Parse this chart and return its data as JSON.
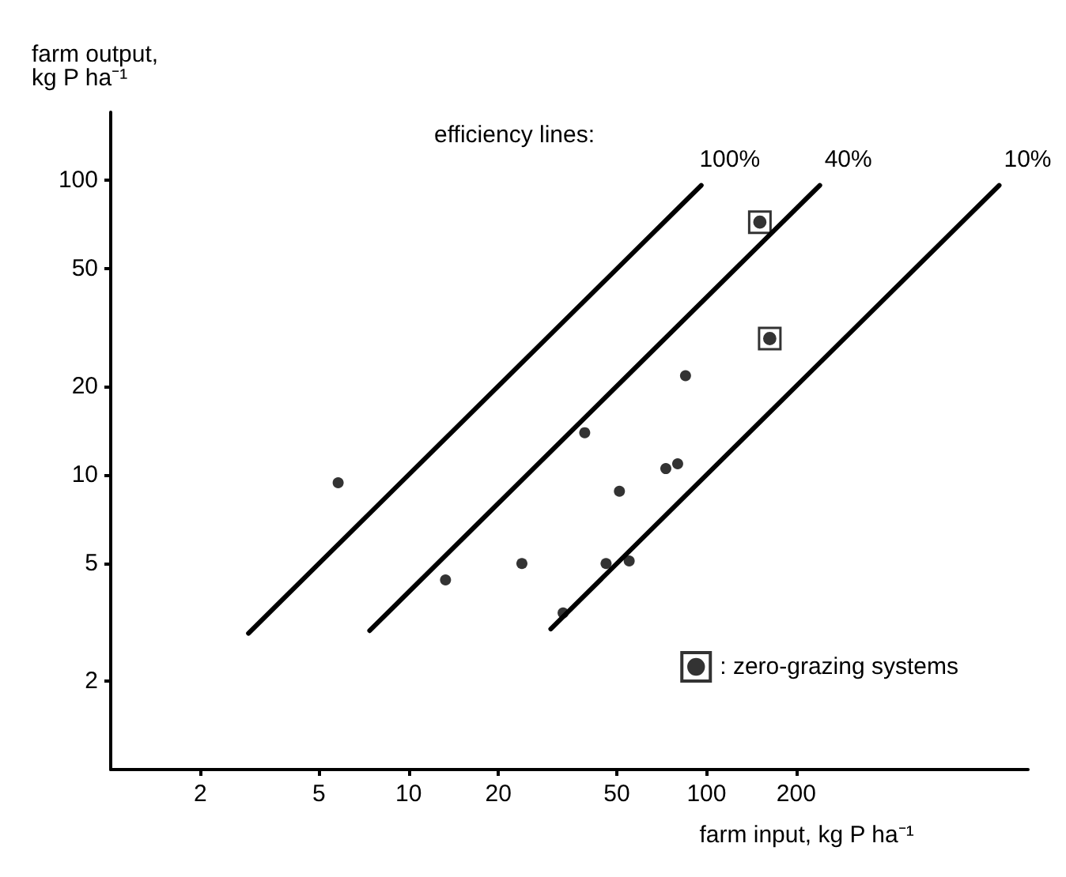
{
  "chart_data": {
    "type": "scatter",
    "xlabel": "farm input, kg P ha⁻¹",
    "ylabel": "farm output,\nkg P ha⁻¹",
    "log": "xy",
    "xlim": [
      1,
      1200
    ],
    "ylim": [
      1,
      170
    ],
    "xticks": [
      2,
      5,
      10,
      20,
      50,
      100,
      200
    ],
    "yticks": [
      2,
      5,
      10,
      20,
      50,
      100
    ],
    "grid": false,
    "legend": "bottom right",
    "marker": "circle",
    "annotations": [
      "efficiency lines:"
    ],
    "series": [
      {
        "color": "#000000",
        "x": [
          5.8,
          13.3,
          24,
          39,
          51,
          46,
          55,
          33,
          73,
          80,
          85
        ],
        "values": [
          9.4,
          4.4,
          5.0,
          13.9,
          8.8,
          5.0,
          5.1,
          3.4,
          10.5,
          10.9,
          21.7
        ]
      },
      {
        "name": ": zero-grazing systems",
        "marker": "square",
        "color": "#000000",
        "x": [
          151,
          163
        ],
        "values": [
          72,
          29
        ]
      },
      {
        "type": "line",
        "name": "100%",
        "marker": "none",
        "color": "#000000",
        "x": [
          2.9,
          96
        ],
        "values": [
          2.9,
          96
        ]
      },
      {
        "type": "line",
        "name": "40%",
        "marker": "none",
        "color": "#000000",
        "x": [
          7.4,
          240
        ],
        "values": [
          2.96,
          96
        ]
      },
      {
        "type": "line",
        "name": "10%",
        "marker": "none",
        "color": "#000000",
        "x": [
          30,
          960
        ],
        "values": [
          3,
          96
        ]
      }
    ]
  }
}
